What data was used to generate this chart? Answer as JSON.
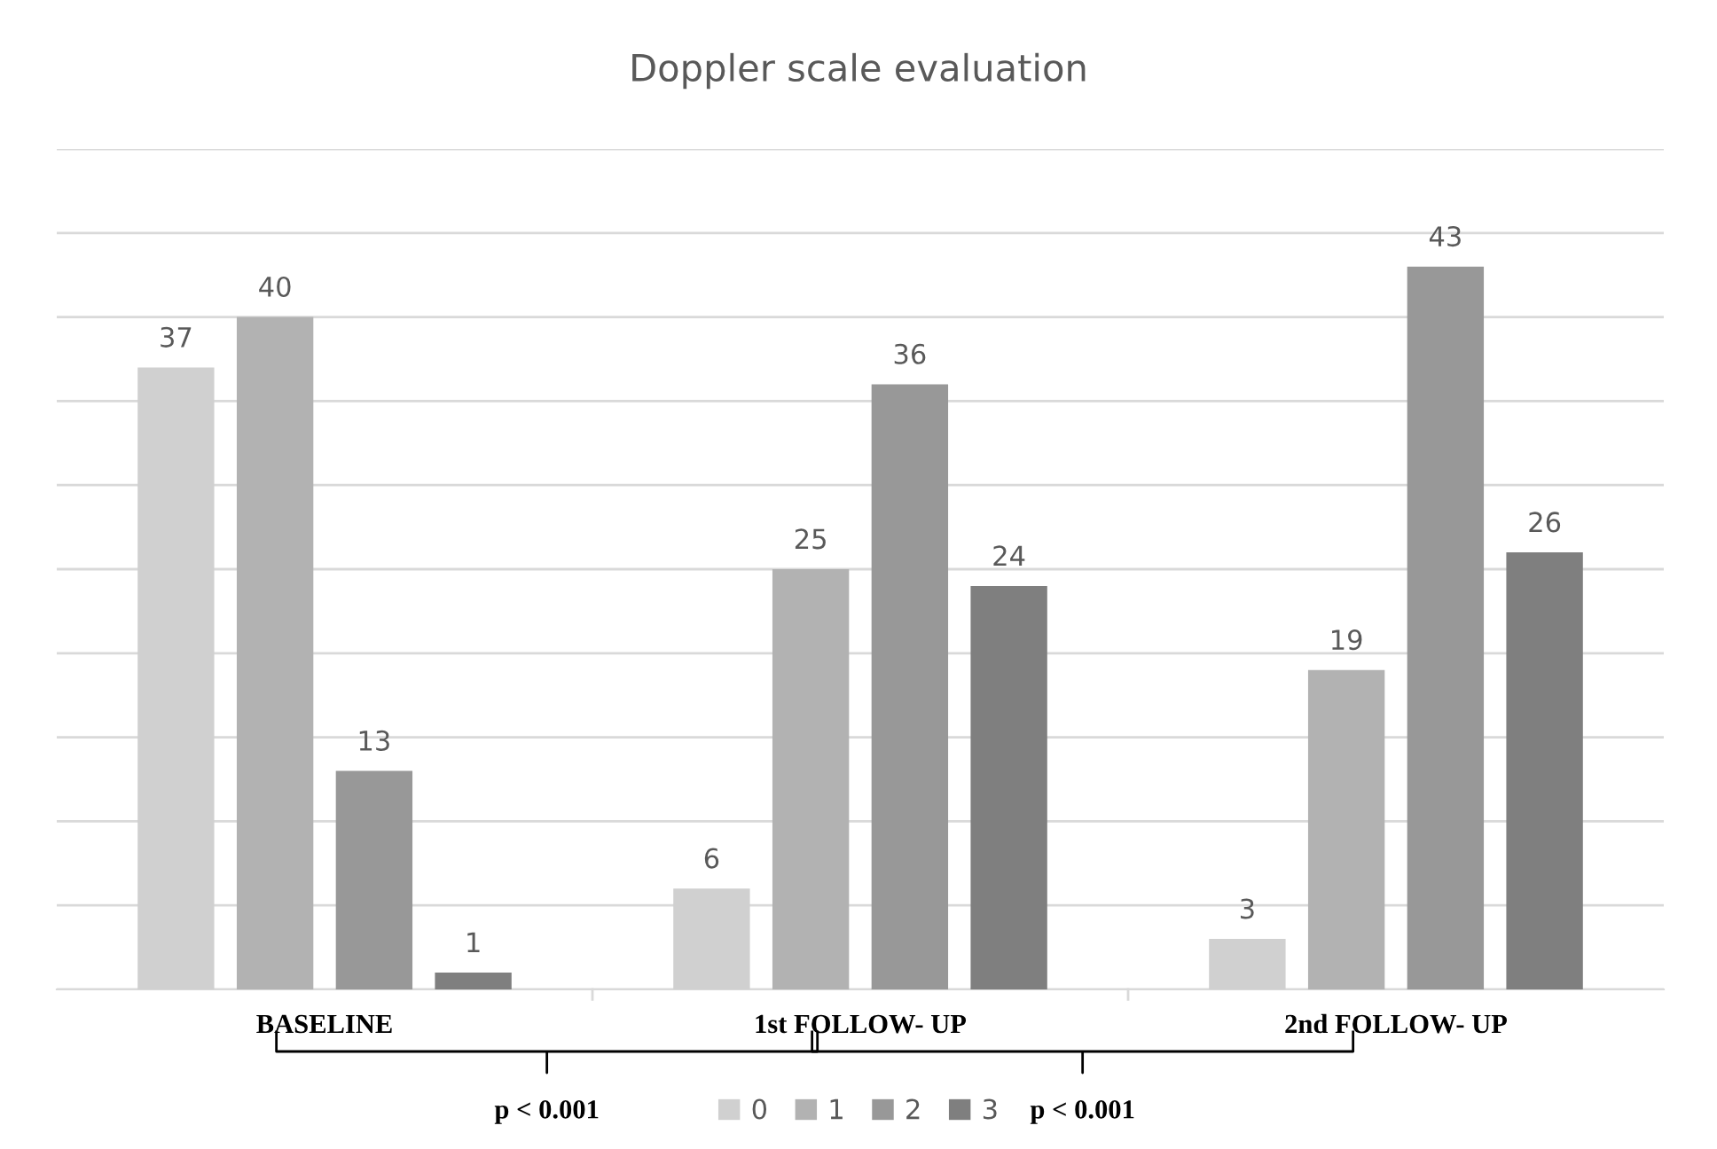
{
  "chart_data": {
    "type": "bar",
    "title": "Doppler scale evaluation",
    "categories": [
      "BASELINE",
      "1st FOLLOW- UP",
      "2nd FOLLOW- UP"
    ],
    "series": [
      {
        "name": "0",
        "color": "#d0d0d0",
        "values": [
          37,
          6,
          3
        ]
      },
      {
        "name": "1",
        "color": "#b2b2b2",
        "values": [
          40,
          25,
          19
        ]
      },
      {
        "name": "2",
        "color": "#989898",
        "values": [
          13,
          36,
          43
        ]
      },
      {
        "name": "3",
        "color": "#7f7f7f",
        "values": [
          1,
          24,
          26
        ]
      }
    ],
    "ylim": [
      0,
      50
    ],
    "yticks": [
      {
        "value": 0,
        "label": null
      },
      {
        "value": 5,
        "label": null
      },
      {
        "value": 10,
        "label": null
      },
      {
        "value": 15,
        "label": null
      },
      {
        "value": 20,
        "label": null
      },
      {
        "value": 25,
        "label": null
      },
      {
        "value": 30,
        "label": null
      },
      {
        "value": 35,
        "label": null
      },
      {
        "value": 40,
        "label": null
      },
      {
        "value": 45,
        "label": null
      },
      {
        "value": 50,
        "label": null
      }
    ],
    "tick_labels": "x",
    "grid": "y",
    "legend": "bottom",
    "data_labels": true,
    "annotations": [
      "p < 0.001",
      "p < 0.001"
    ]
  }
}
